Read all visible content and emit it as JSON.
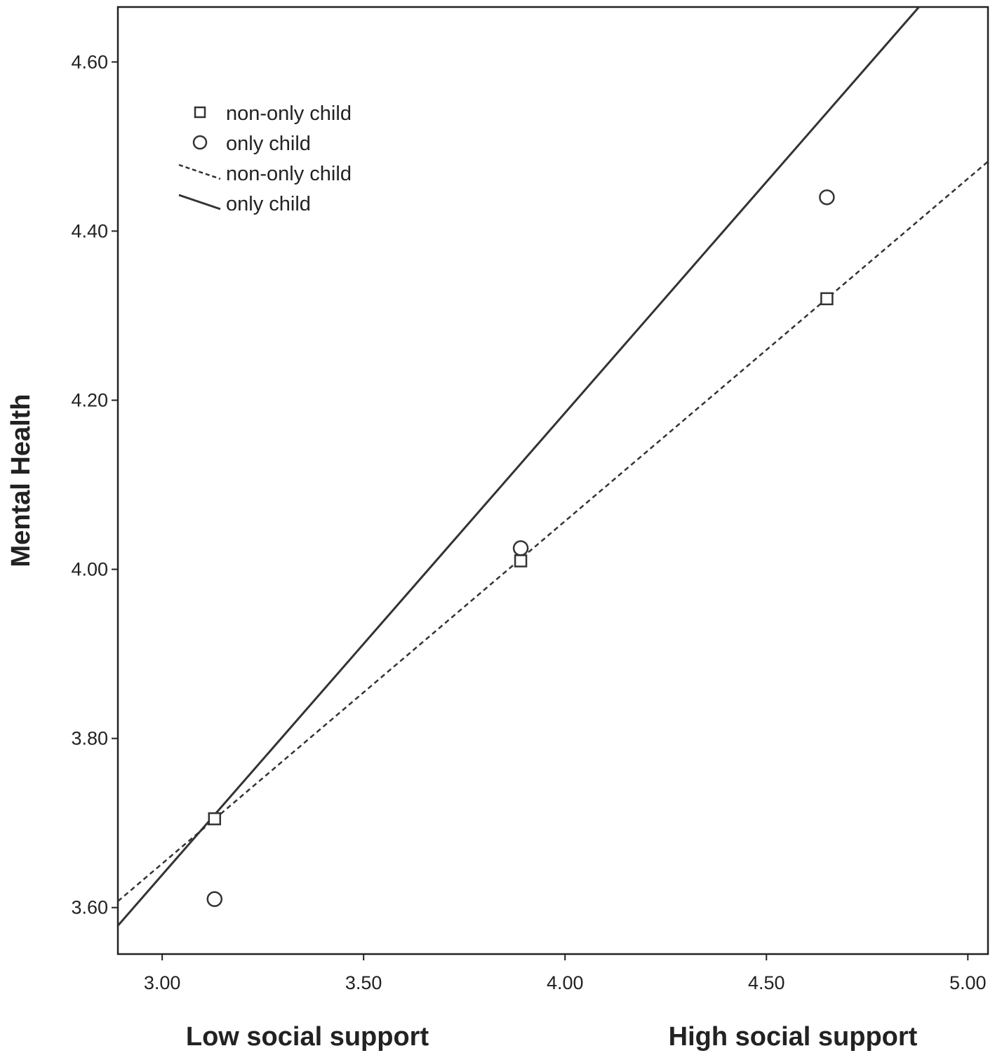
{
  "chart_data": {
    "type": "line",
    "title": "",
    "xlabel_left": "Low social support",
    "xlabel_right": "High social support",
    "ylabel": "Mental Health",
    "xlim": [
      2.89,
      5.05
    ],
    "ylim": [
      3.545,
      4.665
    ],
    "x_ticks": [
      "3.00",
      "3.50",
      "4.00",
      "4.50",
      "5.00"
    ],
    "y_ticks": [
      "3.60",
      "3.80",
      "4.00",
      "4.20",
      "4.40",
      "4.60"
    ],
    "grid": false,
    "legend_position": "top-left",
    "legend": [
      {
        "label": "non-only child",
        "kind": "marker",
        "marker": "square"
      },
      {
        "label": "only child",
        "kind": "marker",
        "marker": "circle"
      },
      {
        "label": "non-only child",
        "kind": "line",
        "dash": "dashed"
      },
      {
        "label": "only child",
        "kind": "line",
        "dash": "solid"
      }
    ],
    "series": [
      {
        "name": "non-only child",
        "marker": "square",
        "line": "dashed",
        "points": [
          [
            3.13,
            3.705
          ],
          [
            3.89,
            4.01
          ],
          [
            4.65,
            4.32
          ]
        ],
        "fit": {
          "slope": 0.405,
          "intercept": 2.437
        }
      },
      {
        "name": "only child",
        "marker": "circle",
        "line": "solid",
        "points": [
          [
            3.13,
            3.61
          ],
          [
            3.89,
            4.025
          ],
          [
            4.65,
            4.44
          ]
        ],
        "fit": {
          "slope": 0.5463,
          "intercept": 1.9998
        }
      }
    ],
    "colors": {
      "line": "#333333",
      "text": "#222222"
    }
  }
}
